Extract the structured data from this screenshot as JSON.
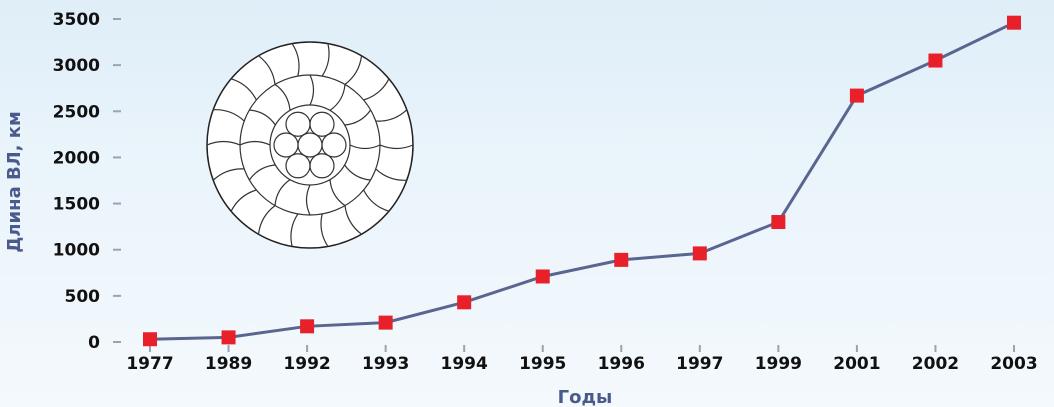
{
  "chart_data": {
    "type": "line",
    "x": [
      "1977",
      "1989",
      "1992",
      "1993",
      "1994",
      "1995",
      "1996",
      "1997",
      "1999",
      "2001",
      "2002",
      "2003"
    ],
    "series": [
      {
        "values": [
          30,
          50,
          170,
          210,
          430,
          710,
          890,
          960,
          1300,
          2670,
          3050,
          3460
        ]
      }
    ],
    "xlabel": "Годы",
    "ylabel": "Длина ВЛ, км",
    "ylim": [
      0,
      3500
    ],
    "yticks": [
      0,
      500,
      1000,
      1500,
      2000,
      2500,
      3000,
      3500
    ],
    "grid": false,
    "colors": {
      "line": "#5a6590",
      "marker": "#e8202a",
      "axis_title": "#4a5a8c"
    }
  },
  "illustration": "conductor-cross-section"
}
